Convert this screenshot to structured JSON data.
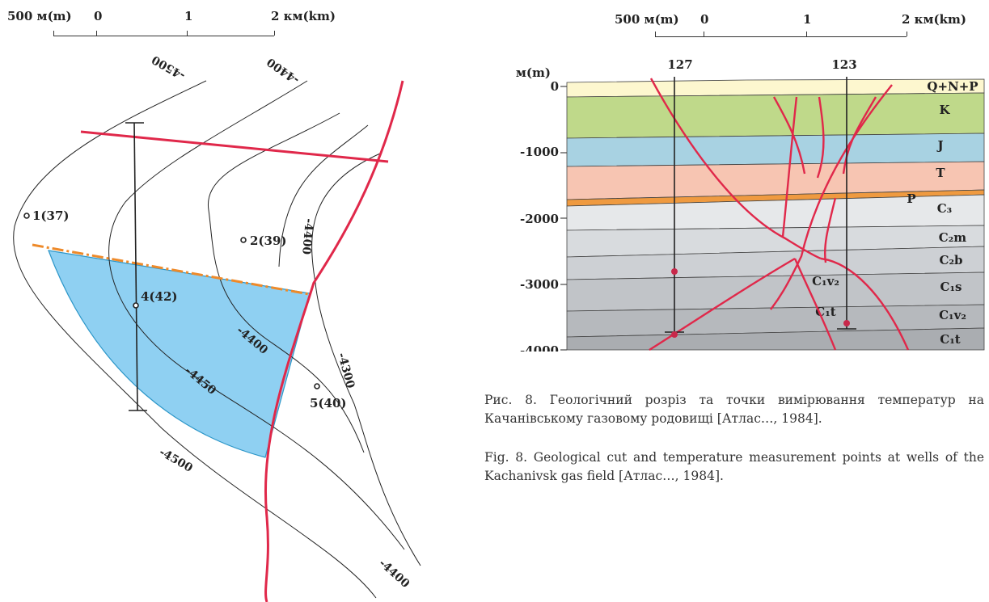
{
  "left_scale": {
    "left_label": "500 м(m)",
    "zero": "0",
    "one": "1",
    "two": "2 км(km)"
  },
  "right_scale": {
    "left_label": "500 м(m)",
    "zero": "0",
    "one": "1",
    "two": "2 км(km)"
  },
  "map": {
    "contours": [
      "-4500",
      "-4400",
      "-4400",
      "-4450",
      "-4500",
      "-4300",
      "-4400"
    ],
    "wells": [
      "1(37)",
      "2(39)",
      "4(42)",
      "5(40)"
    ]
  },
  "section": {
    "depth_unit": "м(m)",
    "depth_ticks": [
      "0",
      "-1000",
      "-2000",
      "-3000",
      "-4000"
    ],
    "well_127": "127",
    "well_123": "123",
    "layers": [
      "Q+N+P",
      "K",
      "J",
      "T",
      "P",
      "C₃",
      "C₂m",
      "C₂b",
      "C₁s",
      "C₁v₂",
      "C₁t"
    ],
    "block_labels": [
      "C₁v₂",
      "C₁t"
    ]
  },
  "caption_ua": "Рис. 8. Геологічний розріз та точки вимірювання температур на Качанівському газовому родовищі [Атлас…, 1984].",
  "caption_en": "Fig. 8. Geological cut  and temperature measurement points at wells of the Kachanivsk gas field [Атлас…, 1984].",
  "colors": {
    "fault": "#e0284a",
    "gas": "#8fd0f2",
    "oil_water": "#ee8a2a",
    "quaternary": "#fdf7cf",
    "cretaceous": "#bfd98a",
    "jurassic": "#a8d2e2",
    "triassic": "#f7c5b2",
    "permian": "#ef9a40",
    "carboniferous": "#d6d8db"
  }
}
